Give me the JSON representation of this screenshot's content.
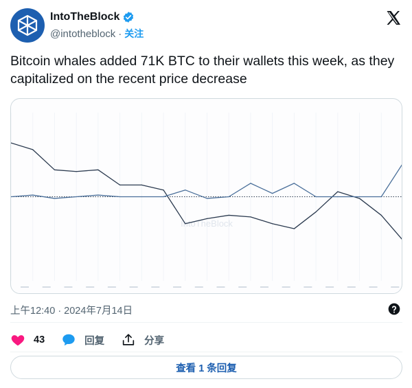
{
  "account": {
    "display_name": "IntoTheBlock",
    "handle": "@intotheblock",
    "separator": "·",
    "follow_label": "关注"
  },
  "tweet": {
    "text": "Bitcoin whales added 71K BTC to their wallets this week, as they capitalized on the recent price decrease",
    "timestamp": "上午12:40 · 2024年7月14日"
  },
  "actions": {
    "likes": "43",
    "reply_label": "回复",
    "share_label": "分享"
  },
  "view_replies_label": "查看 1 条回复",
  "icons": {
    "avatar": "intotheblock-logo-icon",
    "verified": "verified-badge-icon",
    "platform": "x-logo-icon",
    "help": "help-circle-icon",
    "like": "heart-icon",
    "reply": "reply-bubble-icon",
    "share": "share-icon"
  },
  "colors": {
    "brand": "#1d5fb0",
    "accent": "#1d9bf0",
    "like": "#f91880",
    "series_a": "#2b3a4f",
    "series_b": "#4a6f9a"
  },
  "chart_data": {
    "type": "line",
    "note_watermark": "IntoTheBlock",
    "series": [
      {
        "values": [
          8.2,
          7.8,
          6.6,
          6.5,
          6.6,
          5.7,
          5.7,
          5.4,
          3.4,
          3.7,
          3.9,
          3.8,
          3.4,
          3.1,
          4.1,
          5.3,
          4.9,
          3.9,
          2.4
        ]
      },
      {
        "values": [
          5.0,
          5.1,
          4.9,
          5.0,
          5.1,
          5.0,
          5.0,
          5.0,
          5.4,
          4.9,
          5.0,
          5.8,
          5.2,
          5.8,
          5.0,
          5.0,
          5.0,
          5.0,
          7.0
        ]
      }
    ],
    "baseline": 5.0,
    "ylim": [
      0,
      10
    ],
    "grid": true
  }
}
